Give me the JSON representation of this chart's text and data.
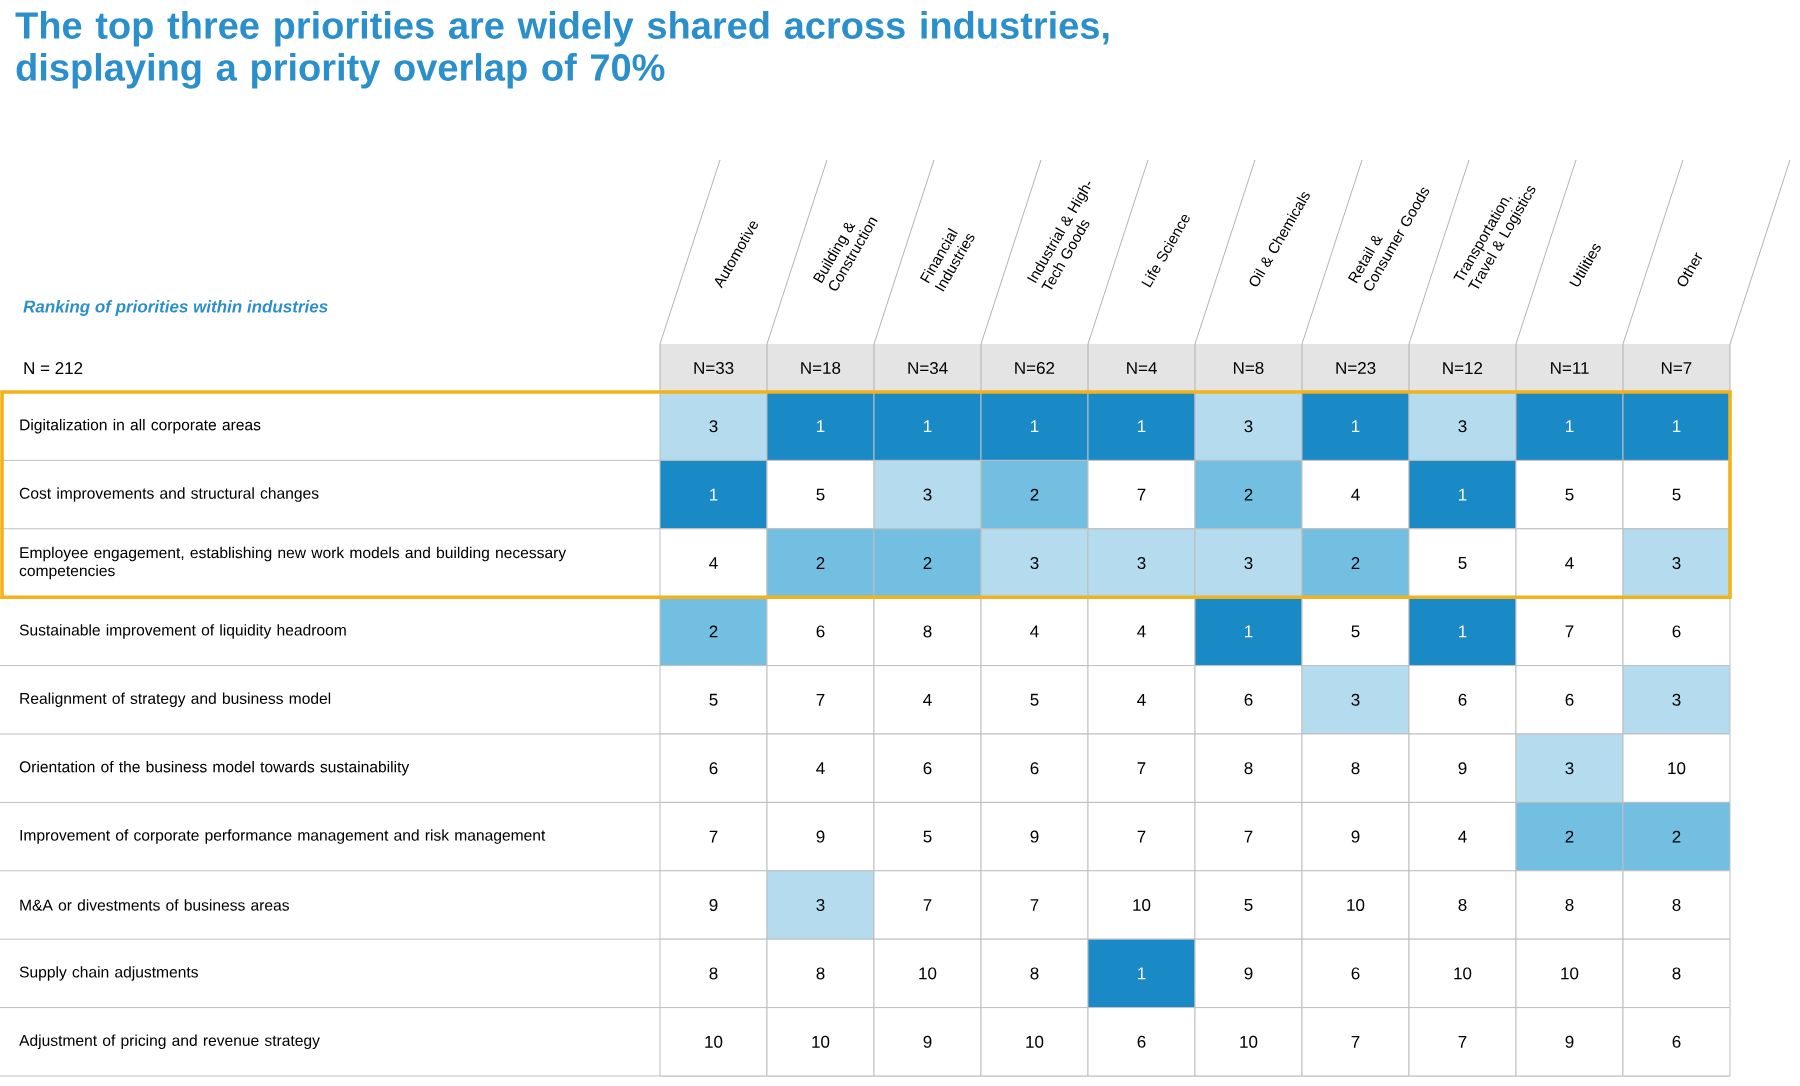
{
  "chart_data": {
    "type": "heatmap",
    "title": "The top three priorities are widely shared across industries, displaying a priority overlap of 70%",
    "subtitle": "Ranking of priorities within industries",
    "categories": [
      "Automotive",
      "Building & Construction",
      "Financial Industries",
      "Industrial & High-Tech Goods",
      "Life Science",
      "Oil & Chemicals",
      "Retail & Consumer Goods",
      "Transportation, Travel & Logistics",
      "Utilities",
      "Other"
    ],
    "y_categories": [
      "Digitalization in all corporate areas",
      "Cost improvements and structural changes",
      "Employee engagement, establishing new work models and building necessary competencies",
      "Sustainable improvement of liquidity headroom",
      "Realignment of strategy and business model",
      "Orientation of the business model towards sustainability",
      "Improvement of corporate performance management and risk management",
      "M&A or divestments of business areas",
      "Supply chain adjustments",
      "Adjustment of pricing and revenue strategy"
    ],
    "cells": [
      [
        3,
        1,
        1,
        1,
        1,
        3,
        1,
        3,
        1,
        1
      ],
      [
        1,
        5,
        3,
        2,
        7,
        2,
        4,
        1,
        5,
        5
      ],
      [
        4,
        2,
        2,
        3,
        3,
        3,
        2,
        5,
        4,
        3
      ],
      [
        2,
        6,
        8,
        4,
        4,
        1,
        5,
        1,
        7,
        6
      ],
      [
        5,
        7,
        4,
        5,
        4,
        6,
        3,
        6,
        6,
        3
      ],
      [
        6,
        4,
        6,
        6,
        7,
        8,
        8,
        9,
        3,
        10
      ],
      [
        7,
        9,
        5,
        9,
        7,
        7,
        9,
        4,
        2,
        2
      ],
      [
        9,
        3,
        7,
        7,
        10,
        5,
        10,
        8,
        8,
        8
      ],
      [
        8,
        8,
        10,
        8,
        1,
        9,
        6,
        10,
        10,
        8
      ],
      [
        10,
        10,
        9,
        10,
        6,
        10,
        7,
        7,
        9,
        6
      ]
    ],
    "colors": [
      "#1a8ac6",
      "#72bfe1",
      "#b5dcee"
    ],
    "data_labels": true,
    "annotations": [
      "N = 212",
      "N=33",
      "N=18",
      "N=34",
      "N=62",
      "N=4",
      "N=8",
      "N=23",
      "N=12",
      "N=11",
      "N=7"
    ]
  }
}
